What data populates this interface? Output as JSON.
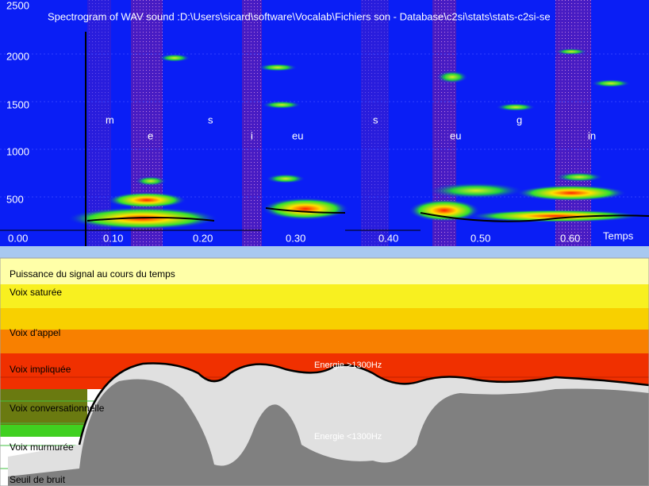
{
  "spectrogram": {
    "title": "Spectrogram of WAV sound :D:\\Users\\sicard\\software\\Vocalab\\Fichiers son - Database\\c2si\\stats\\stats-c2si-se",
    "y_ticks": [
      "2500",
      "2000",
      "1500",
      "1000",
      "500"
    ],
    "x_ticks": [
      "0.00",
      "0.10",
      "0.20",
      "0.30",
      "0.40",
      "0.50",
      "0.60"
    ],
    "x_axis_label": "Temps",
    "phonemes": [
      "m",
      "e",
      "s",
      "i",
      "eu",
      "s",
      "eu",
      "g",
      "in"
    ]
  },
  "power_panel": {
    "title": "Puissance du signal au cours du temps",
    "levels": [
      "Voix saturée",
      "Voix d'appel",
      "Voix impliquée",
      "Voix conversationnelle",
      "Voix murmurée",
      "Seuil de bruit"
    ],
    "energy_high": "Energie >1300Hz",
    "energy_low": "Energie <1300Hz"
  }
}
